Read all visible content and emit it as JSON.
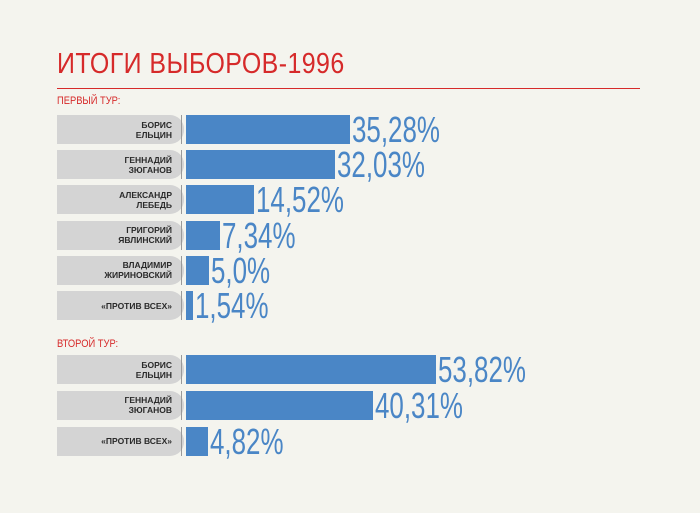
{
  "chart_data": {
    "type": "bar",
    "title": "ИТОГИ ВЫБОРОВ-1996",
    "colors": {
      "title": "#d62a2a",
      "bars": "#4a86c6",
      "labels_bg": "#d4d4d4"
    },
    "sections": [
      {
        "label": "ПЕРВЫЙ ТУР:",
        "categories": [
          "БОРИС\nЕЛЬЦИН",
          "ГЕННАДИЙ\nЗЮГАНОВ",
          "АЛЕКСАНДР\nЛЕБЕДЬ",
          "ГРИГОРИЙ\nЯВЛИНСКИЙ",
          "ВЛАДИМИР\nЖИРИНОВСКИЙ",
          "«ПРОТИВ ВСЕХ»"
        ],
        "values": [
          35.28,
          32.03,
          14.52,
          7.34,
          5.0,
          1.54
        ],
        "value_labels": [
          "35,28%",
          "32,03%",
          "14,52%",
          "7,34%",
          "5,0%",
          "1,54%"
        ]
      },
      {
        "label": "ВТОРОЙ ТУР:",
        "categories": [
          "БОРИС\nЕЛЬЦИН",
          "ГЕННАДИЙ\nЗЮГАНОВ",
          "«ПРОТИВ ВСЕХ»"
        ],
        "values": [
          53.82,
          40.31,
          4.82
        ],
        "value_labels": [
          "53,82%",
          "40,31%",
          "4,82%"
        ]
      }
    ]
  }
}
